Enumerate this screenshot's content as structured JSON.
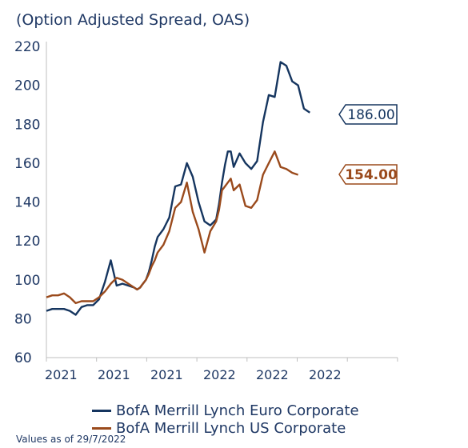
{
  "subtitle": "(Option Adjusted Spread, OAS)",
  "footnote": "Values as of 29/7/2022",
  "colors": {
    "euro": "#15355f",
    "us": "#9a4a1c",
    "axis": "#bfbfbf",
    "text": "#1f3864"
  },
  "chart_data": {
    "type": "line",
    "title": "",
    "ylabel": "",
    "xlabel": "",
    "ylim": [
      60,
      220
    ],
    "yticks": [
      60,
      80,
      100,
      120,
      140,
      160,
      180,
      200,
      220
    ],
    "xtick_labels": [
      "2021",
      "2021",
      "2021",
      "2022",
      "2022",
      "2022"
    ],
    "grid": false,
    "legend_position": "bottom",
    "x": [
      0,
      2,
      4,
      6,
      8,
      10,
      12,
      14,
      16,
      18,
      20,
      22,
      24,
      26,
      28,
      30,
      31,
      32,
      33,
      34,
      35,
      36,
      37,
      38,
      40,
      42,
      44,
      46,
      48,
      50,
      52,
      54,
      56,
      58,
      59,
      60,
      61,
      62,
      63,
      64,
      66,
      68,
      70,
      72,
      74,
      76,
      78,
      80,
      82,
      84,
      86,
      88,
      90,
      91,
      92,
      93,
      94,
      95,
      96,
      97,
      98,
      99,
      100
    ],
    "series": [
      {
        "name": "BofA Merrill Lynch Euro Corporate",
        "end_label": "186.00",
        "values": [
          84,
          85,
          85,
          85,
          84,
          82,
          86,
          87,
          87,
          90,
          99,
          110,
          97,
          98,
          97,
          96,
          95,
          96,
          98,
          100,
          104,
          110,
          117,
          122,
          126,
          132,
          148,
          149,
          160,
          153,
          140,
          130,
          128,
          131,
          139,
          150,
          159,
          166,
          166,
          158,
          165,
          160,
          157,
          161,
          181,
          195,
          194,
          212,
          210,
          202,
          200,
          188,
          186,
          null,
          null,
          null,
          null,
          null,
          null,
          null,
          null,
          null,
          null
        ]
      },
      {
        "name": "BofA Merrill Lynch US Corporate",
        "end_label": "154.00",
        "values": [
          91,
          92,
          92,
          93,
          91,
          88,
          89,
          89,
          89,
          91,
          94,
          98,
          101,
          100,
          98,
          96,
          95,
          96,
          98,
          100,
          103,
          107,
          110,
          114,
          118,
          125,
          137,
          140,
          150,
          135,
          126,
          114,
          125,
          130,
          136,
          146,
          148,
          150,
          152,
          146,
          149,
          138,
          137,
          141,
          154,
          160,
          166,
          158,
          157,
          155,
          154,
          null,
          null,
          null,
          null,
          null,
          null,
          null,
          null,
          null,
          null,
          null,
          null
        ]
      }
    ]
  }
}
